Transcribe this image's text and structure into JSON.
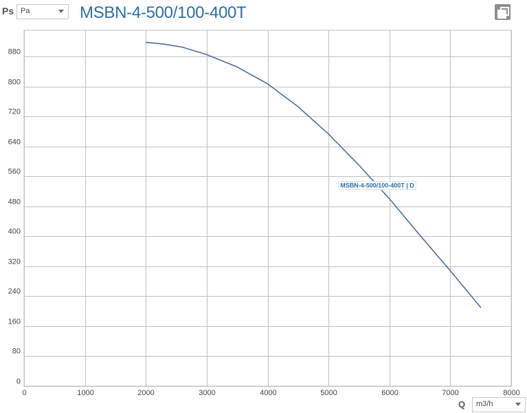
{
  "y_axis": {
    "title": "Ps",
    "unit_selected": "Pa"
  },
  "x_axis": {
    "title": "Q",
    "unit_selected": "m3/h"
  },
  "title": "MSBN-4-500/100-400T",
  "colors": {
    "title": "#2d6ea3",
    "curve": "#4a6d9a",
    "grid": "#bfbfbf"
  },
  "icons": {
    "copy": "copy-icon"
  },
  "chart_data": {
    "type": "line",
    "title": "MSBN-4-500/100-400T",
    "xlabel": "Q",
    "ylabel": "Ps",
    "xlim": [
      0,
      8000
    ],
    "ylim": [
      0,
      950
    ],
    "xticks": [
      "0",
      "1000",
      "2000",
      "3000",
      "4000",
      "5000",
      "6000",
      "7000",
      "8000"
    ],
    "yticks": [
      "0",
      "80",
      "160",
      "240",
      "320",
      "400",
      "480",
      "560",
      "640",
      "720",
      "800",
      "880"
    ],
    "grid": true,
    "series": [
      {
        "name": "MSBN-4-500/100-400T | D",
        "x": [
          2000,
          2300,
          2600,
          3000,
          3500,
          4000,
          4500,
          5000,
          5500,
          6000,
          6500,
          7000,
          7500
        ],
        "y": [
          918,
          913,
          905,
          885,
          852,
          807,
          746,
          673,
          590,
          500,
          403,
          308,
          210
        ]
      }
    ]
  }
}
